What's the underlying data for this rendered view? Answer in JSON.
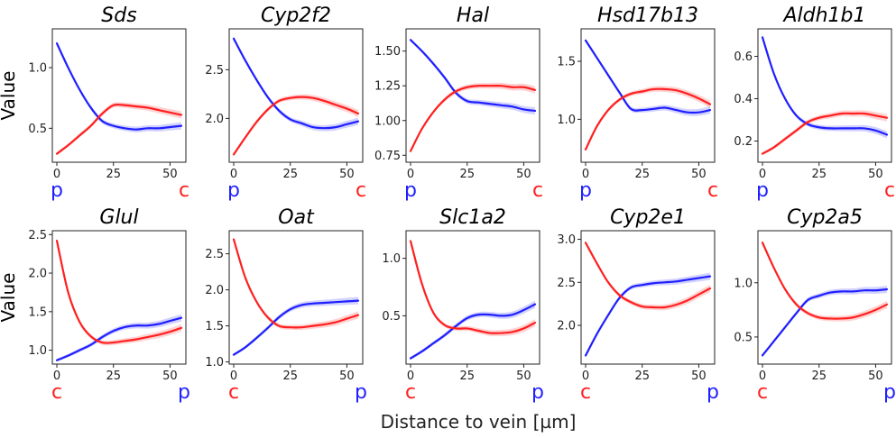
{
  "figure": {
    "xlabel": "Distance to vein [µm]"
  },
  "colors": {
    "p": "#1f1fff",
    "c": "#ff1f1f"
  },
  "chart_data": [
    {
      "type": "line",
      "title": "Sds",
      "ylabel": "Value",
      "xlim": [
        -2,
        57
      ],
      "ylim": [
        0.22,
        1.32
      ],
      "xticks": [
        0,
        25,
        50
      ],
      "yticks": [
        0.5,
        1.0
      ],
      "ytick_labels": [
        "0.5",
        "1.0"
      ],
      "x": [
        0,
        5,
        10,
        15,
        20,
        25,
        30,
        35,
        40,
        45,
        50,
        55
      ],
      "series": [
        {
          "key": "p",
          "values": [
            1.2,
            1.0,
            0.82,
            0.67,
            0.56,
            0.52,
            0.5,
            0.49,
            0.5,
            0.5,
            0.51,
            0.52
          ]
        },
        {
          "key": "c",
          "values": [
            0.29,
            0.36,
            0.44,
            0.52,
            0.62,
            0.69,
            0.69,
            0.68,
            0.67,
            0.65,
            0.63,
            0.61
          ]
        }
      ],
      "left_label": "p",
      "right_label": "c"
    },
    {
      "type": "line",
      "title": "Cyp2f2",
      "xlim": [
        -2,
        57
      ],
      "ylim": [
        1.55,
        2.92
      ],
      "xticks": [
        0,
        25,
        50
      ],
      "yticks": [
        2.0,
        2.5
      ],
      "ytick_labels": [
        "2.0",
        "2.5"
      ],
      "x": [
        0,
        5,
        10,
        15,
        20,
        25,
        30,
        35,
        40,
        45,
        50,
        55
      ],
      "series": [
        {
          "key": "p",
          "values": [
            2.82,
            2.6,
            2.4,
            2.22,
            2.08,
            1.99,
            1.95,
            1.91,
            1.9,
            1.91,
            1.94,
            1.97
          ]
        },
        {
          "key": "c",
          "values": [
            1.63,
            1.8,
            1.96,
            2.09,
            2.18,
            2.21,
            2.22,
            2.21,
            2.18,
            2.14,
            2.1,
            2.05
          ]
        }
      ],
      "left_label": "p",
      "right_label": "c"
    },
    {
      "type": "line",
      "title": "Hal",
      "xlim": [
        -2,
        57
      ],
      "ylim": [
        0.7,
        1.66
      ],
      "xticks": [
        0,
        25,
        50
      ],
      "yticks": [
        0.75,
        1.0,
        1.25,
        1.5
      ],
      "ytick_labels": [
        "0.75",
        "1.00",
        "1.25",
        "1.50"
      ],
      "x": [
        0,
        5,
        10,
        15,
        20,
        25,
        30,
        35,
        40,
        45,
        50,
        55
      ],
      "series": [
        {
          "key": "p",
          "values": [
            1.58,
            1.5,
            1.41,
            1.31,
            1.2,
            1.14,
            1.13,
            1.12,
            1.11,
            1.1,
            1.08,
            1.07
          ]
        },
        {
          "key": "c",
          "values": [
            0.78,
            0.94,
            1.06,
            1.15,
            1.21,
            1.24,
            1.25,
            1.25,
            1.25,
            1.24,
            1.24,
            1.22
          ]
        }
      ],
      "left_label": "p",
      "right_label": "c"
    },
    {
      "type": "line",
      "title": "Hsd17b13",
      "xlim": [
        -2,
        57
      ],
      "ylim": [
        0.63,
        1.78
      ],
      "xticks": [
        0,
        25,
        50
      ],
      "yticks": [
        1.0,
        1.5
      ],
      "ytick_labels": [
        "1.0",
        "1.5"
      ],
      "x": [
        0,
        5,
        10,
        15,
        20,
        25,
        30,
        35,
        40,
        45,
        50,
        55
      ],
      "series": [
        {
          "key": "p",
          "values": [
            1.68,
            1.53,
            1.38,
            1.23,
            1.09,
            1.08,
            1.09,
            1.1,
            1.08,
            1.06,
            1.06,
            1.08
          ]
        },
        {
          "key": "c",
          "values": [
            0.74,
            0.94,
            1.08,
            1.17,
            1.22,
            1.24,
            1.26,
            1.26,
            1.25,
            1.22,
            1.18,
            1.13
          ]
        }
      ],
      "left_label": "p",
      "right_label": "c"
    },
    {
      "type": "line",
      "title": "Aldh1b1",
      "xlim": [
        -2,
        57
      ],
      "ylim": [
        0.1,
        0.73
      ],
      "xticks": [
        0,
        25,
        50
      ],
      "yticks": [
        0.2,
        0.4,
        0.6
      ],
      "ytick_labels": [
        "0.2",
        "0.4",
        "0.6"
      ],
      "x": [
        0,
        5,
        10,
        15,
        20,
        25,
        30,
        35,
        40,
        45,
        50,
        55
      ],
      "series": [
        {
          "key": "p",
          "values": [
            0.69,
            0.52,
            0.4,
            0.32,
            0.28,
            0.265,
            0.26,
            0.26,
            0.26,
            0.26,
            0.25,
            0.23
          ]
        },
        {
          "key": "c",
          "values": [
            0.14,
            0.17,
            0.21,
            0.25,
            0.29,
            0.31,
            0.32,
            0.33,
            0.33,
            0.33,
            0.32,
            0.31
          ]
        }
      ],
      "left_label": "p",
      "right_label": "c"
    },
    {
      "type": "line",
      "title": "Glul",
      "ylabel": "Value",
      "xlim": [
        -2,
        57
      ],
      "ylim": [
        0.82,
        2.55
      ],
      "xticks": [
        0,
        25,
        50
      ],
      "yticks": [
        1.0,
        1.5,
        2.0,
        2.5
      ],
      "ytick_labels": [
        "1.0",
        "1.5",
        "2.0",
        "2.5"
      ],
      "x": [
        0,
        5,
        10,
        15,
        20,
        25,
        30,
        35,
        40,
        45,
        50,
        55
      ],
      "series": [
        {
          "key": "p",
          "values": [
            0.87,
            0.93,
            1.0,
            1.07,
            1.17,
            1.25,
            1.3,
            1.32,
            1.32,
            1.34,
            1.38,
            1.42
          ]
        },
        {
          "key": "c",
          "values": [
            2.42,
            1.75,
            1.37,
            1.18,
            1.1,
            1.1,
            1.12,
            1.14,
            1.17,
            1.2,
            1.24,
            1.29
          ]
        }
      ],
      "left_label": "c",
      "right_label": "p"
    },
    {
      "type": "line",
      "title": "Oat",
      "xlim": [
        -2,
        57
      ],
      "ylim": [
        0.97,
        2.82
      ],
      "xticks": [
        0,
        25,
        50
      ],
      "yticks": [
        1.0,
        1.5,
        2.0,
        2.5
      ],
      "ytick_labels": [
        "1.0",
        "1.5",
        "2.0",
        "2.5"
      ],
      "x": [
        0,
        5,
        10,
        15,
        20,
        25,
        30,
        35,
        40,
        45,
        50,
        55
      ],
      "series": [
        {
          "key": "p",
          "values": [
            1.1,
            1.2,
            1.33,
            1.47,
            1.62,
            1.73,
            1.79,
            1.81,
            1.82,
            1.83,
            1.84,
            1.85
          ]
        },
        {
          "key": "c",
          "values": [
            2.7,
            2.18,
            1.84,
            1.62,
            1.5,
            1.48,
            1.48,
            1.5,
            1.52,
            1.55,
            1.6,
            1.65
          ]
        }
      ],
      "left_label": "c",
      "right_label": "p"
    },
    {
      "type": "line",
      "title": "Slc1a2",
      "xlim": [
        -2,
        57
      ],
      "ylim": [
        0.08,
        1.24
      ],
      "xticks": [
        0,
        25,
        50
      ],
      "yticks": [
        0.5,
        1.0
      ],
      "ytick_labels": [
        "0.5",
        "1.0"
      ],
      "x": [
        0,
        5,
        10,
        15,
        20,
        25,
        30,
        35,
        40,
        45,
        50,
        55
      ],
      "series": [
        {
          "key": "p",
          "values": [
            0.13,
            0.19,
            0.26,
            0.33,
            0.41,
            0.48,
            0.51,
            0.51,
            0.5,
            0.51,
            0.55,
            0.6
          ]
        },
        {
          "key": "c",
          "values": [
            1.15,
            0.78,
            0.53,
            0.42,
            0.39,
            0.39,
            0.37,
            0.35,
            0.35,
            0.36,
            0.39,
            0.44
          ]
        }
      ],
      "left_label": "c",
      "right_label": "p"
    },
    {
      "type": "line",
      "title": "Cyp2e1",
      "xlim": [
        -2,
        57
      ],
      "ylim": [
        1.55,
        3.1
      ],
      "xticks": [
        0,
        25,
        50
      ],
      "yticks": [
        2.0,
        2.5,
        3.0
      ],
      "ytick_labels": [
        "2.0",
        "2.5",
        "3.0"
      ],
      "x": [
        0,
        5,
        10,
        15,
        20,
        25,
        30,
        35,
        40,
        45,
        50,
        55
      ],
      "series": [
        {
          "key": "p",
          "values": [
            1.65,
            1.9,
            2.12,
            2.32,
            2.44,
            2.47,
            2.49,
            2.5,
            2.51,
            2.53,
            2.55,
            2.57
          ]
        },
        {
          "key": "c",
          "values": [
            2.96,
            2.72,
            2.5,
            2.35,
            2.27,
            2.22,
            2.21,
            2.21,
            2.24,
            2.29,
            2.36,
            2.43
          ]
        }
      ],
      "left_label": "c",
      "right_label": "p"
    },
    {
      "type": "line",
      "title": "Cyp2a5",
      "xlim": [
        -2,
        57
      ],
      "ylim": [
        0.25,
        1.48
      ],
      "xticks": [
        0,
        25,
        50
      ],
      "yticks": [
        0.5,
        1.0
      ],
      "ytick_labels": [
        "0.5",
        "1.0"
      ],
      "x": [
        0,
        5,
        10,
        15,
        20,
        25,
        30,
        35,
        40,
        45,
        50,
        55
      ],
      "series": [
        {
          "key": "p",
          "values": [
            0.33,
            0.46,
            0.59,
            0.72,
            0.84,
            0.88,
            0.91,
            0.92,
            0.92,
            0.93,
            0.93,
            0.94
          ]
        },
        {
          "key": "c",
          "values": [
            1.37,
            1.14,
            0.94,
            0.8,
            0.72,
            0.68,
            0.67,
            0.67,
            0.68,
            0.71,
            0.75,
            0.8
          ]
        }
      ],
      "left_label": "c",
      "right_label": "p"
    }
  ]
}
